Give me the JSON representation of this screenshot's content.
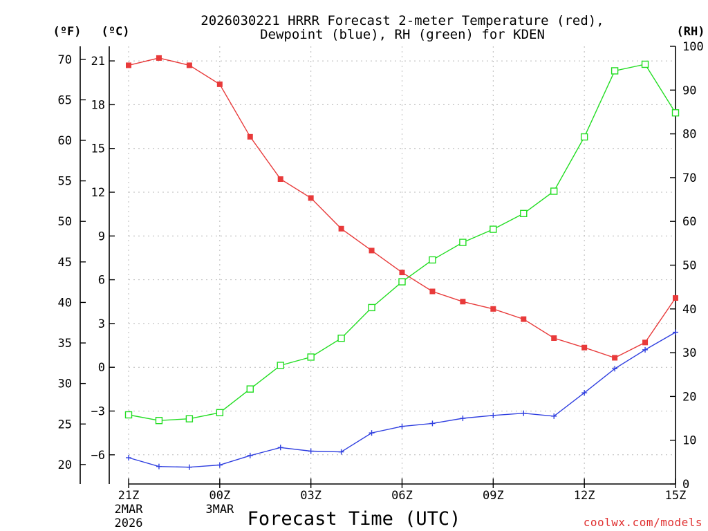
{
  "chart_data": {
    "type": "line",
    "title_line1": "2026030221 HRRR Forecast 2-meter Temperature (red),",
    "title_line2": "Dewpoint (blue), RH (green) for KDEN",
    "xlabel": "Forecast Time (UTC)",
    "credit": "coolwx.com/models",
    "left_unit_f": "(ºF)",
    "left_unit_c": "(ºC)",
    "right_unit": "(RH)",
    "x_hours": [
      0,
      1,
      2,
      3,
      4,
      5,
      6,
      7,
      8,
      9,
      10,
      11,
      12,
      13,
      14,
      15,
      16,
      17,
      18
    ],
    "x_ticks": [
      {
        "hour": 0,
        "label": "21Z",
        "sub1": "2MAR",
        "sub2": "2026"
      },
      {
        "hour": 3,
        "label": "00Z",
        "sub1": "3MAR",
        "sub2": ""
      },
      {
        "hour": 6,
        "label": "03Z",
        "sub1": "",
        "sub2": ""
      },
      {
        "hour": 9,
        "label": "06Z",
        "sub1": "",
        "sub2": ""
      },
      {
        "hour": 12,
        "label": "09Z",
        "sub1": "",
        "sub2": ""
      },
      {
        "hour": 15,
        "label": "12Z",
        "sub1": "",
        "sub2": ""
      },
      {
        "hour": 18,
        "label": "15Z",
        "sub1": "",
        "sub2": ""
      }
    ],
    "celsius_axis": {
      "range": [
        -8,
        22
      ],
      "ticks": [
        -6,
        -3,
        0,
        3,
        6,
        9,
        12,
        15,
        18,
        21
      ]
    },
    "fahrenheit_axis": {
      "ticks": [
        20,
        25,
        30,
        35,
        40,
        45,
        50,
        55,
        60,
        65,
        70
      ]
    },
    "rh_axis": {
      "range": [
        0,
        100
      ],
      "ticks": [
        0,
        10,
        20,
        30,
        40,
        50,
        60,
        70,
        80,
        90,
        100
      ]
    },
    "grid": true,
    "series": [
      {
        "name": "Temperature",
        "unit": "C",
        "color": "#e83a3a",
        "marker": "filled-square",
        "values": [
          20.7,
          21.2,
          20.7,
          19.4,
          15.8,
          12.9,
          11.6,
          9.5,
          8.0,
          6.5,
          5.2,
          4.5,
          4.0,
          3.3,
          2.0,
          1.35,
          0.65,
          1.7,
          4.75
        ]
      },
      {
        "name": "Dewpoint",
        "unit": "C",
        "color": "#2f3fe0",
        "marker": "plus",
        "values": [
          -6.2,
          -6.8,
          -6.85,
          -6.7,
          -6.05,
          -5.5,
          -5.75,
          -5.8,
          -4.5,
          -4.05,
          -3.85,
          -3.5,
          -3.3,
          -3.15,
          -3.35,
          -1.75,
          -0.1,
          1.2,
          2.4
        ]
      },
      {
        "name": "RH",
        "unit": "%",
        "color": "#22dd22",
        "marker": "open-square",
        "values": [
          15.8,
          14.5,
          14.9,
          16.3,
          21.7,
          27.1,
          29.0,
          33.3,
          40.3,
          46.2,
          51.2,
          55.2,
          58.2,
          61.8,
          66.9,
          79.3,
          94.4,
          95.9,
          84.8
        ]
      }
    ]
  }
}
